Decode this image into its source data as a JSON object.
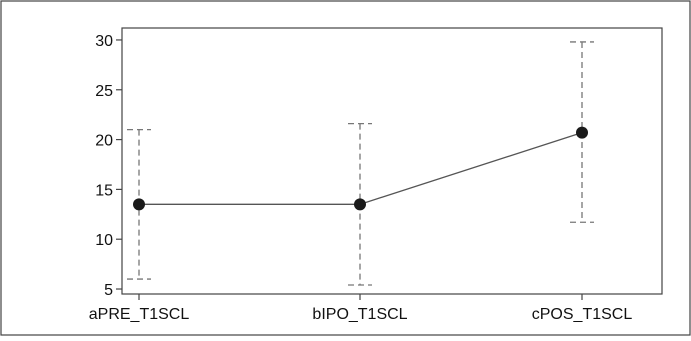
{
  "chart_data": {
    "type": "line",
    "title": "",
    "xlabel": "",
    "ylabel": "",
    "categories": [
      "aPRE_T1SCL",
      "bIPO_T1SCL",
      "cPOS_T1SCL"
    ],
    "series": [
      {
        "values": [
          13.5,
          13.5,
          20.7
        ],
        "lower": [
          6.0,
          5.4,
          11.7
        ],
        "upper": [
          21.0,
          21.6,
          29.8
        ]
      }
    ],
    "yticks": [
      5,
      10,
      15,
      20,
      25,
      30
    ],
    "ylim": [
      4.5,
      31.2
    ],
    "grid": false,
    "error_bars": true,
    "colors": {
      "line": "#555555",
      "marker": "#1a1a1a",
      "error_bar": "#777777",
      "frame": "#444444"
    }
  }
}
